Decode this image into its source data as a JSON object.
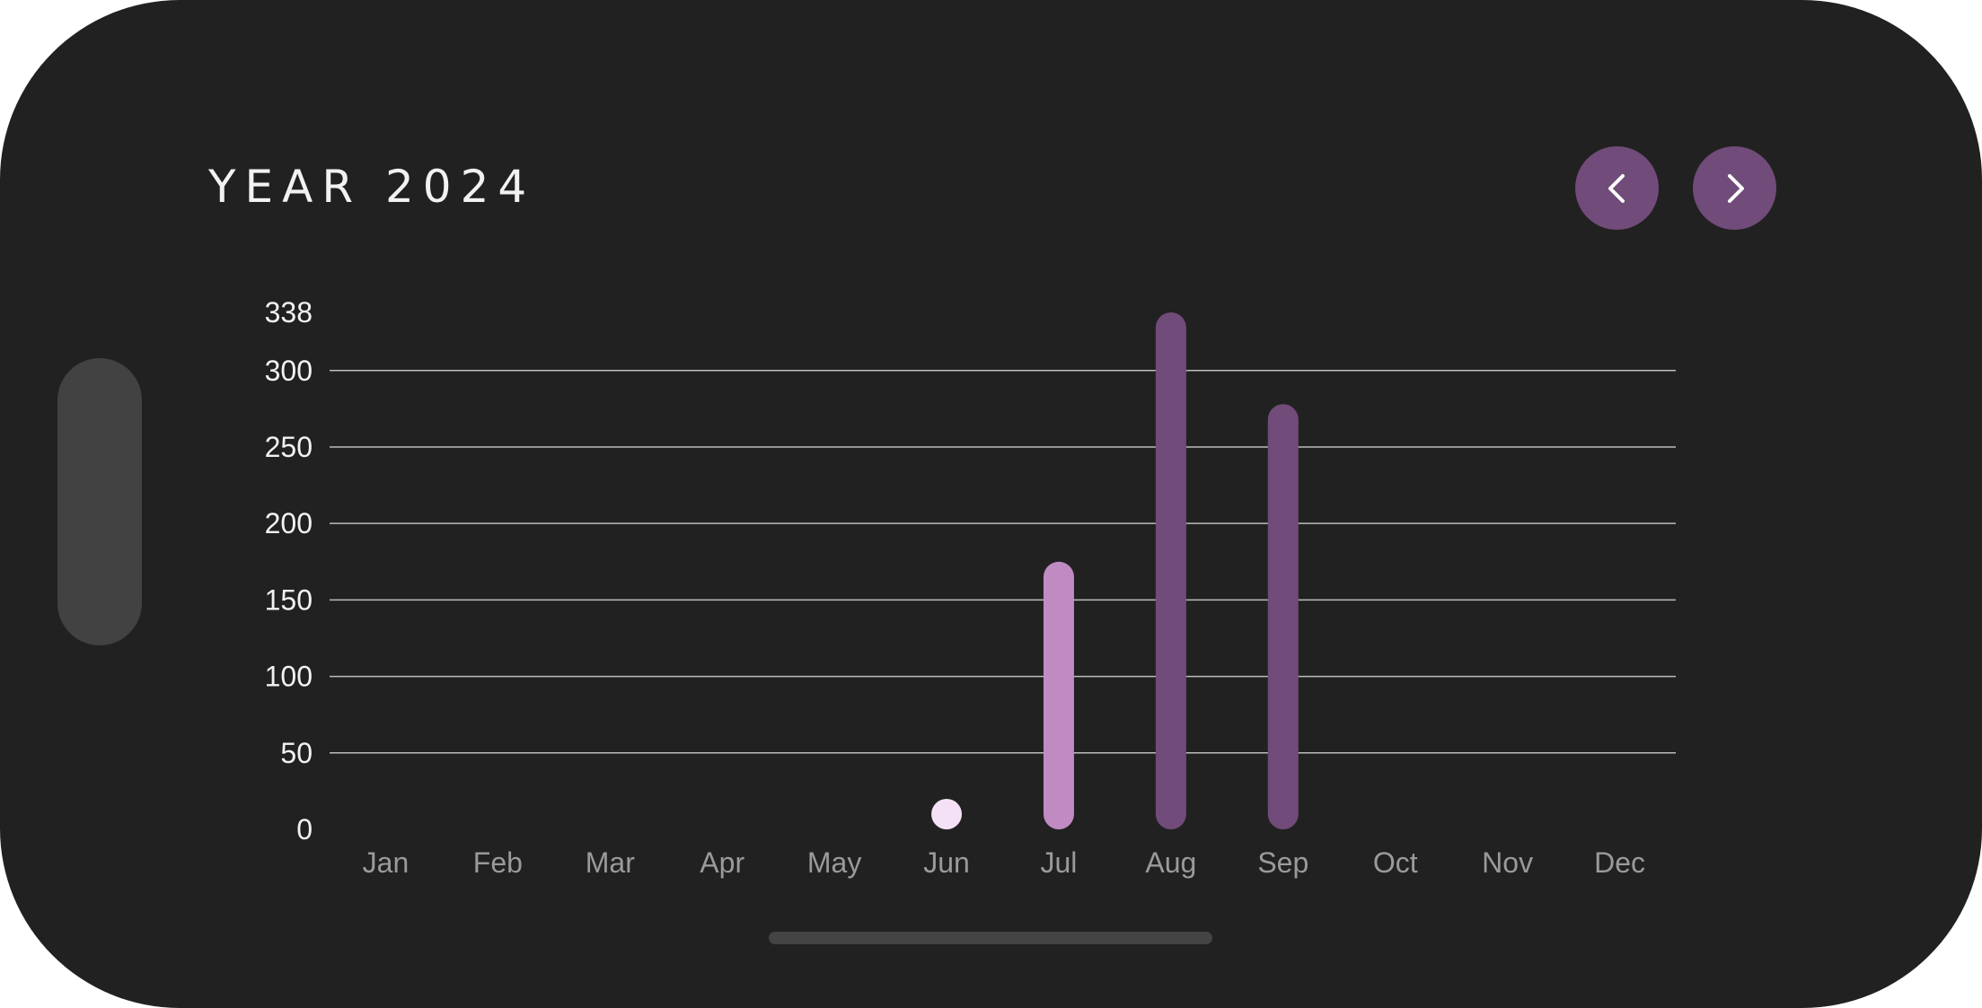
{
  "header": {
    "title": "YEAR 2024",
    "prev_icon": "chevron-left-icon",
    "next_icon": "chevron-right-icon"
  },
  "colors": {
    "background": "#212121",
    "accent": "#714b79",
    "bar_dark": "#714b79",
    "bar_light": "#c08bc2",
    "point_pale": "#f5e1f5",
    "grid": "#bdbdbd",
    "axis_text": "#f2f2f2",
    "month_text": "#9a9a9a"
  },
  "chart_data": {
    "type": "bar",
    "categories": [
      "Jan",
      "Feb",
      "Mar",
      "Apr",
      "May",
      "Jun",
      "Jul",
      "Aug",
      "Sep",
      "Oct",
      "Nov",
      "Dec"
    ],
    "values": [
      0,
      0,
      0,
      0,
      0,
      10,
      175,
      338,
      278,
      0,
      0,
      0
    ],
    "bar_colors": [
      null,
      null,
      null,
      null,
      null,
      "#f5e1f5",
      "#c08bc2",
      "#714b79",
      "#714b79",
      null,
      null,
      null
    ],
    "y_ticks": [
      0,
      50,
      100,
      150,
      200,
      250,
      300,
      338
    ],
    "ylim": [
      0,
      338
    ],
    "grid": true
  }
}
